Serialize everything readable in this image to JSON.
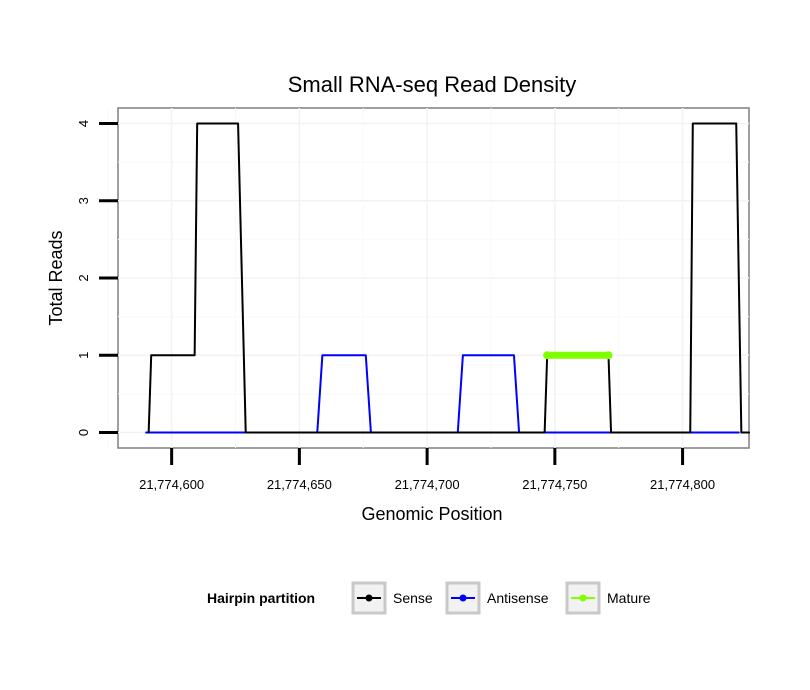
{
  "chart_data": {
    "type": "line",
    "title": "Small RNA-seq Read Density",
    "xlabel": "Genomic Position",
    "ylabel": "Total Reads",
    "xlim": [
      21774579,
      21774826
    ],
    "ylim": [
      -0.2,
      4.2
    ],
    "x_ticks": [
      21774600,
      21774650,
      21774700,
      21774750,
      21774800
    ],
    "x_tick_labels": [
      "21,774,600",
      "21,774,650",
      "21,774,700",
      "21,774,750",
      "21,774,800"
    ],
    "y_ticks": [
      0,
      1,
      2,
      3,
      4
    ],
    "y_tick_labels": [
      "0",
      "1",
      "2",
      "3",
      "4"
    ],
    "grid": true,
    "legend": {
      "title": "Hairpin partition",
      "position": "bottom"
    },
    "series": [
      {
        "name": "Sense",
        "color": "#000000",
        "points": [
          [
            21774591,
            0
          ],
          [
            21774592,
            1
          ],
          [
            21774599,
            1
          ],
          [
            21774600,
            1
          ],
          [
            21774609,
            1
          ],
          [
            21774610,
            4
          ],
          [
            21774626,
            4
          ],
          [
            21774629,
            0
          ],
          [
            21774656,
            0
          ],
          [
            21774690,
            0
          ],
          [
            21774711,
            0
          ],
          [
            21774735,
            0
          ],
          [
            21774746,
            0
          ],
          [
            21774747,
            1
          ],
          [
            21774771,
            1
          ],
          [
            21774772,
            0
          ],
          [
            21774800,
            0
          ],
          [
            21774803,
            0
          ],
          [
            21774804,
            4
          ],
          [
            21774821,
            4
          ],
          [
            21774823,
            0
          ],
          [
            21774826,
            0
          ]
        ]
      },
      {
        "name": "Antisense",
        "color": "#0000ff",
        "points": [
          [
            21774590,
            0
          ],
          [
            21774657,
            0
          ],
          [
            21774659,
            1
          ],
          [
            21774676,
            1
          ],
          [
            21774678,
            0
          ],
          [
            21774712,
            0
          ],
          [
            21774714,
            1
          ],
          [
            21774734,
            1
          ],
          [
            21774736,
            0
          ],
          [
            21774822,
            0
          ]
        ]
      },
      {
        "name": "Mature",
        "color": "#7fff00",
        "points": [
          [
            21774747,
            1
          ],
          [
            21774771,
            1
          ]
        ]
      }
    ]
  }
}
